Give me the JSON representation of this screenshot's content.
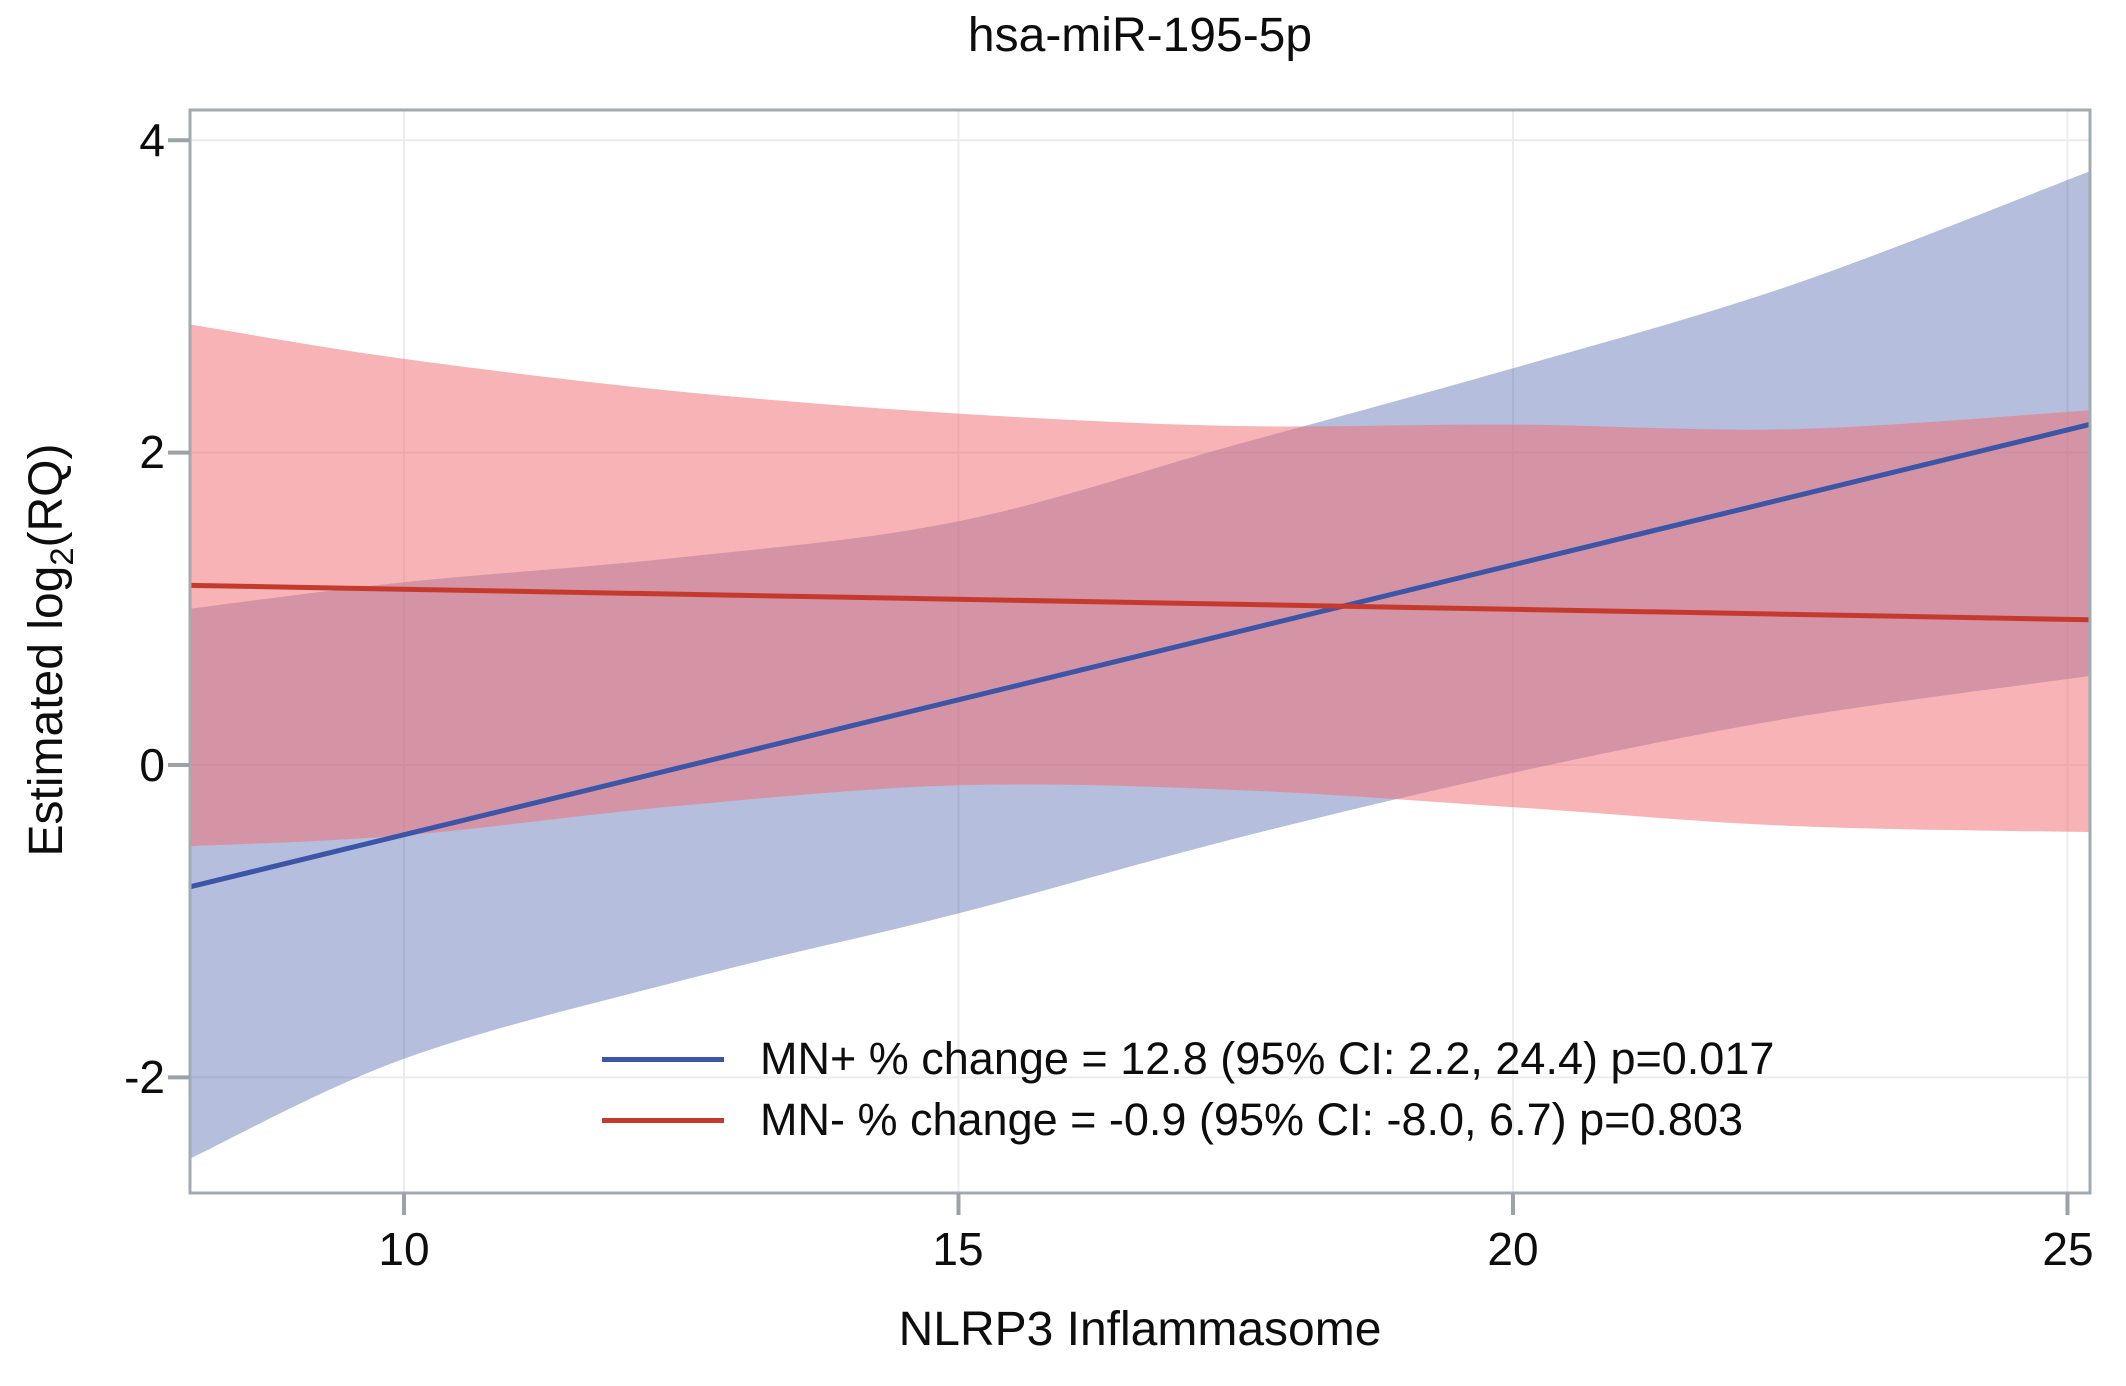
{
  "title": "hsa-miR-195-5p",
  "x_axis": {
    "label": "NLRP3 Inflammasome",
    "ticks": [
      "10",
      "15",
      "20",
      "25"
    ]
  },
  "y_axis": {
    "label_parts": {
      "prefix": "Estimated log",
      "sub": "2",
      "suffix": "(RQ)"
    },
    "ticks": [
      "4",
      "2",
      "0",
      "-2"
    ]
  },
  "legend": {
    "items": [
      {
        "series": "MN+",
        "label": "MN+ % change = 12.8 (95% CI: 2.2, 24.4) p=0.017"
      },
      {
        "series": "MN-",
        "label": "MN- % change = -0.9 (95% CI: -8.0, 6.7) p=0.803"
      }
    ]
  },
  "colors": {
    "line_mn_plus": "#3D55A6",
    "line_mn_minus": "#C43B2D",
    "band_mn_plus": "rgba(90,110,178,0.45)",
    "band_mn_minus": "rgba(239,112,118,0.53)",
    "frame": "#A2ABB2",
    "tick": "#9AA3AA",
    "gridline": "#ECECEC",
    "text": "#0d0d0d"
  },
  "chart_data": {
    "type": "line",
    "subtype": "regression-lines-with-95ci-bands",
    "title": "hsa-miR-195-5p",
    "xlabel": "NLRP3 Inflammasome",
    "ylabel": "Estimated log2(RQ)",
    "x_ticks": [
      10,
      15,
      20,
      25
    ],
    "y_ticks": [
      4,
      2,
      0,
      -2
    ],
    "x_range": [
      8.07,
      25.2
    ],
    "y_range": [
      -2.74,
      4.19
    ],
    "grid": true,
    "legend_position": "inside-bottom-center",
    "series": [
      {
        "name": "MN+",
        "percent_change": 12.8,
        "ci_95": [
          2.2,
          24.4
        ],
        "p_value": 0.017,
        "line": {
          "x": [
            8.07,
            25.2
          ],
          "y": [
            -0.78,
            2.18
          ]
        },
        "band": {
          "x": [
            8.07,
            10.0,
            12.5,
            15.0,
            17.5,
            20.0,
            22.5,
            25.2
          ],
          "upper": [
            1.0,
            1.17,
            1.33,
            1.56,
            2.05,
            2.54,
            3.07,
            3.8
          ],
          "lower": [
            -2.52,
            -1.88,
            -1.38,
            -0.95,
            -0.47,
            -0.05,
            0.3,
            0.57
          ]
        }
      },
      {
        "name": "MN-",
        "percent_change": -0.9,
        "ci_95": [
          -8.0,
          6.7
        ],
        "p_value": 0.803,
        "line": {
          "x": [
            8.07,
            25.2
          ],
          "y": [
            1.15,
            0.93
          ]
        },
        "band": {
          "x": [
            8.07,
            10.0,
            12.5,
            15.0,
            17.5,
            20.0,
            22.5,
            25.2
          ],
          "upper": [
            2.82,
            2.6,
            2.39,
            2.25,
            2.17,
            2.18,
            2.15,
            2.27
          ],
          "lower": [
            -0.52,
            -0.45,
            -0.26,
            -0.13,
            -0.16,
            -0.27,
            -0.39,
            -0.43
          ]
        }
      }
    ]
  }
}
